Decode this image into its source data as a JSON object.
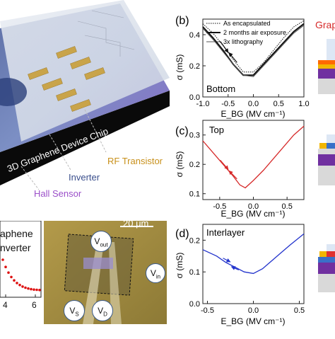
{
  "panel_b": {
    "letter": "(b)",
    "legend": [
      "As encapsulated",
      "2 months air exposure",
      "3x lithography"
    ],
    "region": "Bottom",
    "ylabel": "σ (mS)",
    "xlabel": "E_BG (MV cm⁻¹)",
    "xticks": [
      "-1.0",
      "-0.5",
      "0.0",
      "0.5",
      "1.0"
    ],
    "yticks": [
      "0.0",
      "0.2",
      "0.4"
    ]
  },
  "panel_c": {
    "letter": "(c)",
    "region": "Top",
    "ylabel": "σ (mS)",
    "xlabel": "E_BG (MV cm⁻¹)",
    "xticks": [
      "-0.5",
      "0.0",
      "0.5"
    ],
    "yticks": [
      "0.1",
      "0.2",
      "0.3"
    ]
  },
  "panel_d": {
    "letter": "(d)",
    "region": "Interlayer",
    "ylabel": "σ (mS)",
    "xlabel": "E_BG (MV cm⁻¹)",
    "xticks": [
      "-0.5",
      "0.0",
      "0.5"
    ],
    "yticks": [
      "0.0",
      "0.1",
      "0.2"
    ]
  },
  "side_label": "Grap",
  "chip": {
    "title": "3D Graphene Device Chip",
    "rf_transistor": "RF Transistor",
    "inverter": "Inverter",
    "hall_sensor": "Hall Sensor"
  },
  "inverter_plot": {
    "title_line1": "aphene",
    "title_line2": "nverter",
    "xticks": [
      "4",
      "6"
    ]
  },
  "micrograph": {
    "scale_bar": "20 μm",
    "terminals": {
      "vout": "V",
      "vout_sub": "out",
      "vin": "V",
      "vin_sub": "in",
      "vs": "V",
      "vs_sub": "S",
      "vd": "V",
      "vd_sub": "D"
    }
  },
  "colors": {
    "bottom_curve": "#111111",
    "top_curve": "#d62a2a",
    "interlayer_curve": "#2233cc",
    "inverter_dots": "#dd1111",
    "rf_label": "#c8901a",
    "inverter_label": "#3a4e8c",
    "hall_label": "#9b4fc9"
  },
  "chart_data": [
    {
      "type": "line",
      "title": "Bottom",
      "xlabel": "E_BG (MV cm⁻¹)",
      "ylabel": "σ (mS)",
      "xlim": [
        -1.0,
        1.0
      ],
      "ylim": [
        0.0,
        0.5
      ],
      "series": [
        {
          "name": "As encapsulated",
          "x": [
            -1.0,
            -0.8,
            -0.6,
            -0.4,
            -0.2,
            0.0,
            0.2,
            0.4,
            0.6,
            0.8,
            1.0
          ],
          "y": [
            0.47,
            0.41,
            0.33,
            0.24,
            0.16,
            0.16,
            0.22,
            0.3,
            0.38,
            0.45,
            0.49
          ]
        },
        {
          "name": "2 months air exposure",
          "x": [
            -1.0,
            -0.8,
            -0.6,
            -0.4,
            -0.2,
            0.0,
            0.2,
            0.4,
            0.6,
            0.8,
            1.0
          ],
          "y": [
            0.45,
            0.38,
            0.3,
            0.21,
            0.14,
            0.14,
            0.21,
            0.28,
            0.35,
            0.42,
            0.47
          ]
        },
        {
          "name": "3x lithography",
          "x": [
            -1.0,
            -0.8,
            -0.6,
            -0.4,
            -0.2,
            0.0,
            0.2,
            0.4,
            0.6,
            0.8,
            1.0
          ],
          "y": [
            0.44,
            0.37,
            0.29,
            0.21,
            0.14,
            0.13,
            0.2,
            0.27,
            0.34,
            0.41,
            0.46
          ]
        }
      ]
    },
    {
      "type": "line",
      "title": "Top",
      "xlabel": "E_BG (MV cm⁻¹)",
      "ylabel": "σ (mS)",
      "xlim": [
        -0.75,
        0.75
      ],
      "ylim": [
        0.08,
        0.35
      ],
      "series": [
        {
          "x": [
            -0.75,
            -0.6,
            -0.45,
            -0.3,
            -0.2,
            -0.12,
            0.0,
            0.15,
            0.3,
            0.45,
            0.6,
            0.75
          ],
          "y": [
            0.28,
            0.24,
            0.2,
            0.16,
            0.13,
            0.12,
            0.145,
            0.18,
            0.22,
            0.26,
            0.3,
            0.33
          ]
        }
      ]
    },
    {
      "type": "line",
      "title": "Interlayer",
      "xlabel": "E_BG (MV cm⁻¹)",
      "ylabel": "σ (mS)",
      "xlim": [
        -0.55,
        0.55
      ],
      "ylim": [
        0.0,
        0.25
      ],
      "series": [
        {
          "x": [
            -0.55,
            -0.4,
            -0.3,
            -0.2,
            -0.1,
            0.0,
            0.1,
            0.2,
            0.3,
            0.4,
            0.55
          ],
          "y": [
            0.17,
            0.15,
            0.13,
            0.115,
            0.1,
            0.095,
            0.11,
            0.135,
            0.16,
            0.185,
            0.22
          ]
        }
      ]
    }
  ]
}
